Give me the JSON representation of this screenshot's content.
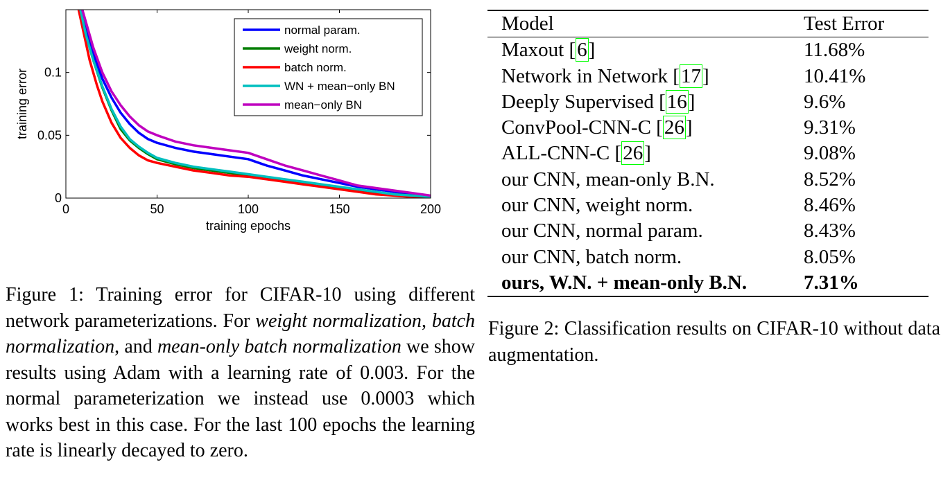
{
  "chart_data": {
    "type": "line",
    "xlabel": "training epochs",
    "ylabel": "training error",
    "xlim": [
      0,
      200
    ],
    "ylim": [
      0,
      0.15
    ],
    "xticks": [
      0,
      50,
      100,
      150,
      200
    ],
    "yticks": [
      0,
      0.05,
      0.1
    ],
    "ytick_labels": [
      "0",
      "0.05",
      "0.1"
    ],
    "legend_position": "top-right",
    "grid": false,
    "series": [
      {
        "name": "normal param.",
        "color": "#0000ff",
        "x": [
          9,
          12,
          15,
          20,
          25,
          30,
          35,
          40,
          45,
          50,
          60,
          70,
          80,
          90,
          100,
          110,
          120,
          130,
          140,
          150,
          160,
          170,
          180,
          190,
          200
        ],
        "y": [
          0.15,
          0.13,
          0.115,
          0.095,
          0.08,
          0.068,
          0.059,
          0.052,
          0.047,
          0.044,
          0.04,
          0.037,
          0.035,
          0.033,
          0.031,
          0.026,
          0.022,
          0.018,
          0.015,
          0.012,
          0.009,
          0.007,
          0.005,
          0.003,
          0.0015
        ]
      },
      {
        "name": "weight norm.",
        "color": "#007f00",
        "x": [
          8,
          11,
          15,
          20,
          25,
          30,
          35,
          40,
          45,
          50,
          60,
          70,
          80,
          90,
          100,
          110,
          120,
          130,
          140,
          150,
          160,
          170,
          180,
          190,
          200
        ],
        "y": [
          0.15,
          0.13,
          0.11,
          0.088,
          0.07,
          0.055,
          0.046,
          0.04,
          0.035,
          0.031,
          0.027,
          0.024,
          0.022,
          0.02,
          0.018,
          0.016,
          0.014,
          0.012,
          0.01,
          0.008,
          0.006,
          0.004,
          0.003,
          0.002,
          0.001
        ]
      },
      {
        "name": "batch norm.",
        "color": "#ff0000",
        "x": [
          7,
          10,
          13,
          17,
          20,
          25,
          30,
          35,
          40,
          45,
          50,
          60,
          70,
          80,
          90,
          100,
          110,
          120,
          130,
          140,
          150,
          160,
          170,
          180,
          190,
          200
        ],
        "y": [
          0.15,
          0.13,
          0.11,
          0.09,
          0.077,
          0.06,
          0.048,
          0.04,
          0.034,
          0.03,
          0.028,
          0.025,
          0.022,
          0.02,
          0.018,
          0.017,
          0.015,
          0.013,
          0.011,
          0.009,
          0.007,
          0.005,
          0.003,
          0.002,
          0.001,
          0.0005
        ]
      },
      {
        "name": "WN + mean−only BN",
        "color": "#00bfbf",
        "x": [
          8,
          11,
          15,
          20,
          25,
          30,
          35,
          40,
          45,
          50,
          60,
          70,
          80,
          90,
          100,
          110,
          120,
          130,
          140,
          150,
          160,
          170,
          180,
          190,
          200
        ],
        "y": [
          0.15,
          0.13,
          0.11,
          0.089,
          0.071,
          0.057,
          0.047,
          0.041,
          0.036,
          0.032,
          0.028,
          0.025,
          0.023,
          0.021,
          0.019,
          0.017,
          0.015,
          0.013,
          0.011,
          0.009,
          0.007,
          0.005,
          0.003,
          0.002,
          0.001
        ]
      },
      {
        "name": "mean−only BN",
        "color": "#bf00bf",
        "x": [
          9,
          12,
          15,
          20,
          25,
          30,
          35,
          40,
          45,
          50,
          60,
          70,
          80,
          90,
          100,
          110,
          120,
          130,
          140,
          150,
          160,
          170,
          180,
          190,
          200
        ],
        "y": [
          0.15,
          0.135,
          0.12,
          0.1,
          0.085,
          0.074,
          0.065,
          0.058,
          0.053,
          0.05,
          0.045,
          0.042,
          0.04,
          0.038,
          0.036,
          0.031,
          0.026,
          0.022,
          0.018,
          0.014,
          0.01,
          0.008,
          0.006,
          0.004,
          0.002
        ]
      }
    ]
  },
  "figure1_caption": {
    "label": "Figure 1:",
    "t1": " Training error for CIFAR-10 using different network parameterizations. For ",
    "i1": "weight normalization",
    "t2": ", ",
    "i2": "batch normalization",
    "t3": ", and ",
    "i3": "mean-only batch normalization",
    "t4": " we show results using Adam with a learning rate of 0.003. For the normal parameterization we instead use 0.0003 which works best in this case. For the last 100 epochs the learning rate is linearly decayed to zero."
  },
  "table": {
    "header_model": "Model",
    "header_error": "Test Error",
    "rows": [
      {
        "model": "Maxout ",
        "cite": "6",
        "suffix": "",
        "error": "11.68%"
      },
      {
        "model": "Network in Network ",
        "cite": "17",
        "suffix": "",
        "error": "10.41%"
      },
      {
        "model": "Deeply Supervised ",
        "cite": "16",
        "suffix": "",
        "error": "9.6%"
      },
      {
        "model": "ConvPool-CNN-C ",
        "cite": "26",
        "suffix": "",
        "error": "9.31%"
      },
      {
        "model": "ALL-CNN-C ",
        "cite": "26",
        "suffix": "",
        "error": "9.08%"
      },
      {
        "model": "our CNN, mean-only B.N.",
        "cite": "",
        "suffix": "",
        "error": "8.52%"
      },
      {
        "model": "our CNN, weight norm.",
        "cite": "",
        "suffix": "",
        "error": "8.46%"
      },
      {
        "model": "our CNN, normal param.",
        "cite": "",
        "suffix": "",
        "error": "8.43%"
      },
      {
        "model": "our CNN, batch norm.",
        "cite": "",
        "suffix": "",
        "error": "8.05%"
      },
      {
        "model": "ours, W.N. + mean-only B.N.",
        "cite": "",
        "suffix": "",
        "error": "7.31%"
      }
    ]
  },
  "figure2_caption": {
    "label": "Figure 2:",
    "text": " Classification results on CIFAR-10 without data augmentation."
  }
}
